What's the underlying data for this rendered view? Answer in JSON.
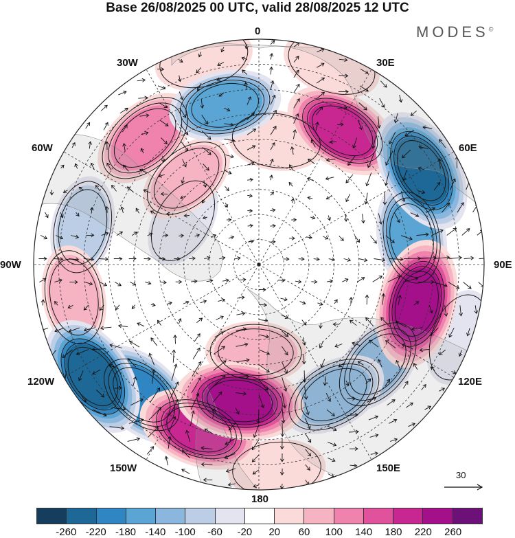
{
  "title": "Base 26/08/2025 00 UTC, valid 28/08/2025 12 UTC",
  "brand": "MODES",
  "brand_mark": "©",
  "longitude_labels": {
    "top": "0",
    "top_right": "30E",
    "right_upper": "60E",
    "right": "90E",
    "right_lower": "120E",
    "bottom_right": "150E",
    "bottom": "180",
    "bottom_left": "150W",
    "left_lower": "120W",
    "left": "90W",
    "left_upper": "60W",
    "top_left": "30W"
  },
  "reference_vector": {
    "value": "30"
  },
  "colorbar": {
    "colors": [
      "#143d5e",
      "#1d6896",
      "#2f86c2",
      "#5ba5d4",
      "#8bb7de",
      "#bccde6",
      "#e4e4f1",
      "#ffffff",
      "#fbdada",
      "#f6b4c2",
      "#f083ae",
      "#e0539c",
      "#c82791",
      "#a3108a",
      "#6b1178"
    ],
    "tick_labels": [
      "-260",
      "-220",
      "-180",
      "-140",
      "-100",
      "-60",
      "-20",
      "20",
      "60",
      "100",
      "140",
      "180",
      "220",
      "260"
    ]
  },
  "anomaly_features": [
    {
      "lon": 60,
      "lat": 15,
      "value": -230
    },
    {
      "lon": 80,
      "lat": 28,
      "value": -150
    },
    {
      "lon": 104,
      "lat": 25,
      "value": 250
    },
    {
      "lon": 32,
      "lat": 27,
      "value": 190
    },
    {
      "lon": 8,
      "lat": 40,
      "value": 40
    },
    {
      "lon": -12,
      "lat": 25,
      "value": -140
    },
    {
      "lon": -42,
      "lat": 22,
      "value": 130
    },
    {
      "lon": -78,
      "lat": 18,
      "value": -70
    },
    {
      "lon": -100,
      "lat": 15,
      "value": 80
    },
    {
      "lon": -124,
      "lat": 10,
      "value": -220
    },
    {
      "lon": -138,
      "lat": 20,
      "value": -200
    },
    {
      "lon": -160,
      "lat": 20,
      "value": 200
    },
    {
      "lon": -172,
      "lat": 35,
      "value": 240
    },
    {
      "lon": 150,
      "lat": 30,
      "value": -110
    },
    {
      "lon": 130,
      "lat": 28,
      "value": -100
    },
    {
      "lon": -178,
      "lat": 55,
      "value": 60
    },
    {
      "lon": -40,
      "lat": 45,
      "value": 60
    },
    {
      "lon": 20,
      "lat": 5,
      "value": 50
    },
    {
      "lon": 175,
      "lat": 8,
      "value": 40
    },
    {
      "lon": -60,
      "lat": 55,
      "value": -30
    },
    {
      "lon": 110,
      "lat": 5,
      "value": -40
    },
    {
      "lon": -15,
      "lat": 5,
      "value": 50
    }
  ]
}
